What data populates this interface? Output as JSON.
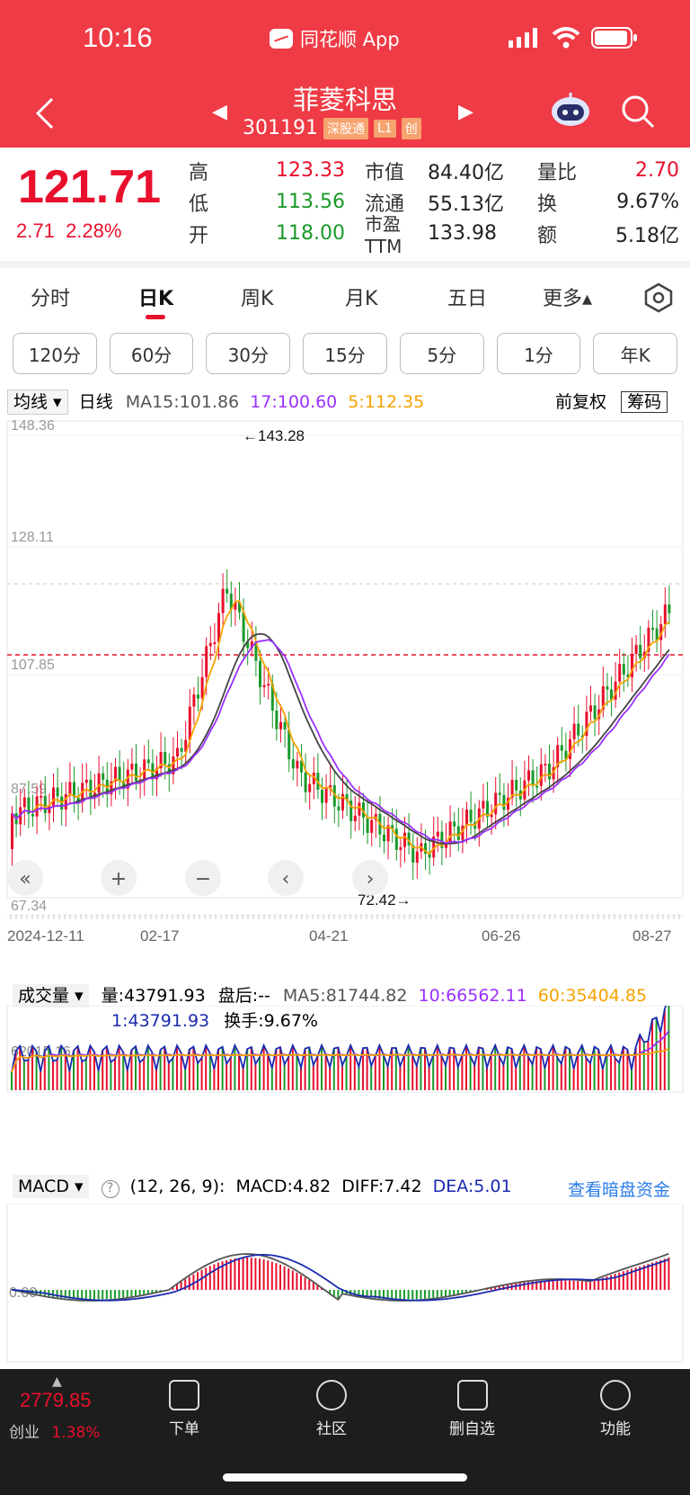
{
  "status": {
    "time": "10:16",
    "app": "同花顺 App"
  },
  "header": {
    "name": "菲菱科思",
    "code": "301191",
    "tags": [
      "深股通",
      "L1",
      "创"
    ]
  },
  "quote": {
    "price": "121.71",
    "change": "2.71",
    "change_pct": "2.28%",
    "rows": [
      {
        "l1": "高",
        "v1": "123.33",
        "c1": "red",
        "l2": "市值",
        "v2": "84.40亿",
        "l3": "量比",
        "v3": "2.70",
        "c3": "red"
      },
      {
        "l1": "低",
        "v1": "113.56",
        "c1": "green",
        "l2": "流通",
        "v2": "55.13亿",
        "l3": "换",
        "v3": "9.67%",
        "c3": "dark"
      },
      {
        "l1": "开",
        "v1": "118.00",
        "c1": "green",
        "l2": "市盈TTM",
        "v2": "133.98",
        "l3": "额",
        "v3": "5.18亿",
        "c3": "dark"
      }
    ]
  },
  "tabs": [
    "分时",
    "日K",
    "周K",
    "月K",
    "五日",
    "更多▴"
  ],
  "periods": [
    "120分",
    "60分",
    "30分",
    "15分",
    "5分",
    "1分",
    "年K"
  ],
  "kline": {
    "indicator": "均线 ▾",
    "period_label": "日线",
    "ma15": "MA15:101.86",
    "ma17": "17:100.60",
    "ma5": "5:112.35",
    "adjust": "前复权",
    "chip": "筹码",
    "yticks": [
      "148.36",
      "128.11",
      "107.85",
      "87.59",
      "67.34"
    ],
    "xticks": [
      "2024-12-11",
      "02-17",
      "04-21",
      "06-26",
      "08-27"
    ],
    "high_label": "←143.28",
    "low_label": "72.42→"
  },
  "volume": {
    "label": "成交量 ▾",
    "vol": "量:43791.93",
    "after": "盘后:--",
    "ma5": "MA5:81744.82",
    "ma10": "10:66562.11",
    "ma60": "60:35404.85",
    "line1": "1:43791.93",
    "turnover": "换手:9.67%",
    "ytick": "62015.16"
  },
  "macd": {
    "label": "MACD ▾",
    "params": "(12, 26, 9):",
    "macd": "MACD:4.82",
    "diff": "DIFF:7.42",
    "dea": "DEA:5.01",
    "link": "查看暗盘资金",
    "ytick": "0.00"
  },
  "bottom": {
    "index_value": "2779.85",
    "index_name": "创业",
    "index_pct": "1.38%",
    "items": [
      "下单",
      "社区",
      "删自选",
      "功能"
    ]
  },
  "colors": {
    "brand": "#ef3b45",
    "up": "#e8102d",
    "down": "#1a9a2a",
    "ma5": "#f5a300",
    "ma10": "#9b30ff",
    "ma15": "#444444"
  }
}
